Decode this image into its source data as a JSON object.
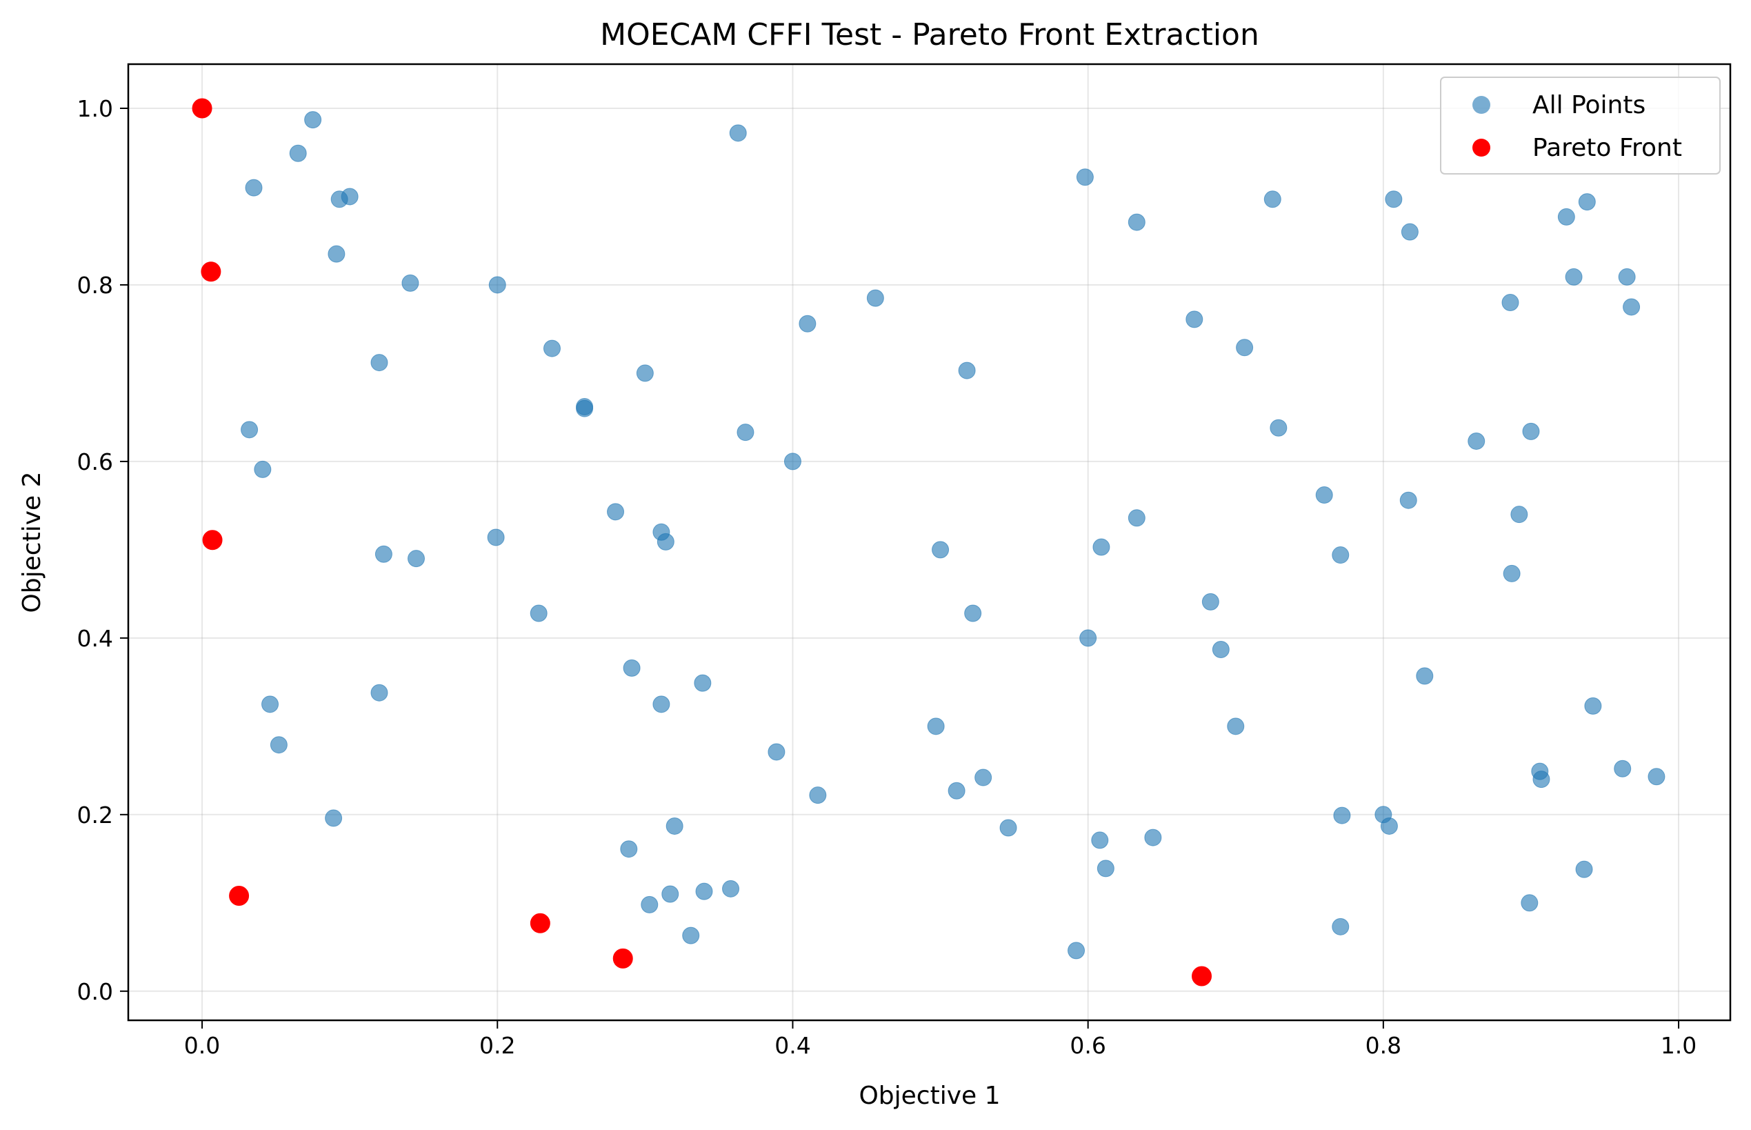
{
  "chart_data": {
    "type": "scatter",
    "title": "MOECAM CFFI Test - Pareto Front Extraction",
    "xlabel": "Objective 1",
    "ylabel": "Objective 2",
    "xlim": [
      -0.05,
      1.035
    ],
    "ylim": [
      -0.033,
      1.05
    ],
    "xticks": [
      0.0,
      0.2,
      0.4,
      0.6,
      0.8,
      1.0
    ],
    "xtick_labels": [
      "0.0",
      "0.2",
      "0.4",
      "0.6",
      "0.8",
      "1.0"
    ],
    "yticks": [
      0.0,
      0.2,
      0.4,
      0.6,
      0.8,
      1.0
    ],
    "ytick_labels": [
      "0.0",
      "0.2",
      "0.4",
      "0.6",
      "0.8",
      "1.0"
    ],
    "grid": true,
    "legend_position": "top-right",
    "series": [
      {
        "name": "All Points",
        "color": "#1f77b4",
        "opacity": 0.6,
        "points": [
          [
            0.075,
            0.987
          ],
          [
            0.065,
            0.949
          ],
          [
            0.035,
            0.91
          ],
          [
            0.093,
            0.897
          ],
          [
            0.1,
            0.9
          ],
          [
            0.091,
            0.835
          ],
          [
            0.141,
            0.802
          ],
          [
            0.2,
            0.8
          ],
          [
            0.12,
            0.712
          ],
          [
            0.237,
            0.728
          ],
          [
            0.032,
            0.636
          ],
          [
            0.041,
            0.591
          ],
          [
            0.259,
            0.66
          ],
          [
            0.259,
            0.662
          ],
          [
            0.3,
            0.7
          ],
          [
            0.368,
            0.633
          ],
          [
            0.363,
            0.972
          ],
          [
            0.41,
            0.756
          ],
          [
            0.456,
            0.785
          ],
          [
            0.518,
            0.703
          ],
          [
            0.4,
            0.6
          ],
          [
            0.28,
            0.543
          ],
          [
            0.311,
            0.52
          ],
          [
            0.314,
            0.509
          ],
          [
            0.199,
            0.514
          ],
          [
            0.123,
            0.495
          ],
          [
            0.145,
            0.49
          ],
          [
            0.228,
            0.428
          ],
          [
            0.5,
            0.5
          ],
          [
            0.522,
            0.428
          ],
          [
            0.046,
            0.325
          ],
          [
            0.052,
            0.279
          ],
          [
            0.12,
            0.338
          ],
          [
            0.291,
            0.366
          ],
          [
            0.311,
            0.325
          ],
          [
            0.339,
            0.349
          ],
          [
            0.389,
            0.271
          ],
          [
            0.089,
            0.196
          ],
          [
            0.289,
            0.161
          ],
          [
            0.32,
            0.187
          ],
          [
            0.417,
            0.222
          ],
          [
            0.303,
            0.098
          ],
          [
            0.317,
            0.11
          ],
          [
            0.34,
            0.113
          ],
          [
            0.358,
            0.116
          ],
          [
            0.331,
            0.063
          ],
          [
            0.497,
            0.3
          ],
          [
            0.511,
            0.227
          ],
          [
            0.529,
            0.242
          ],
          [
            0.546,
            0.185
          ],
          [
            0.598,
            0.922
          ],
          [
            0.633,
            0.871
          ],
          [
            0.672,
            0.761
          ],
          [
            0.706,
            0.729
          ],
          [
            0.725,
            0.897
          ],
          [
            0.729,
            0.638
          ],
          [
            0.633,
            0.536
          ],
          [
            0.609,
            0.503
          ],
          [
            0.6,
            0.4
          ],
          [
            0.683,
            0.441
          ],
          [
            0.69,
            0.387
          ],
          [
            0.7,
            0.3
          ],
          [
            0.608,
            0.171
          ],
          [
            0.612,
            0.139
          ],
          [
            0.644,
            0.174
          ],
          [
            0.592,
            0.046
          ],
          [
            0.807,
            0.897
          ],
          [
            0.818,
            0.86
          ],
          [
            0.76,
            0.562
          ],
          [
            0.771,
            0.494
          ],
          [
            0.817,
            0.556
          ],
          [
            0.828,
            0.357
          ],
          [
            0.772,
            0.199
          ],
          [
            0.8,
            0.2
          ],
          [
            0.804,
            0.187
          ],
          [
            0.771,
            0.073
          ],
          [
            0.886,
            0.78
          ],
          [
            0.924,
            0.877
          ],
          [
            0.938,
            0.894
          ],
          [
            0.929,
            0.809
          ],
          [
            0.965,
            0.809
          ],
          [
            0.968,
            0.775
          ],
          [
            0.863,
            0.623
          ],
          [
            0.9,
            0.634
          ],
          [
            0.892,
            0.54
          ],
          [
            0.887,
            0.473
          ],
          [
            0.942,
            0.323
          ],
          [
            0.906,
            0.249
          ],
          [
            0.907,
            0.24
          ],
          [
            0.962,
            0.252
          ],
          [
            0.985,
            0.243
          ],
          [
            0.936,
            0.138
          ],
          [
            0.899,
            0.1
          ]
        ]
      },
      {
        "name": "Pareto Front",
        "color": "#ff0000",
        "opacity": 1.0,
        "points": [
          [
            0.0,
            1.0
          ],
          [
            0.006,
            0.815
          ],
          [
            0.007,
            0.511
          ],
          [
            0.025,
            0.108
          ],
          [
            0.229,
            0.077
          ],
          [
            0.285,
            0.037
          ],
          [
            0.677,
            0.017
          ]
        ]
      }
    ]
  }
}
